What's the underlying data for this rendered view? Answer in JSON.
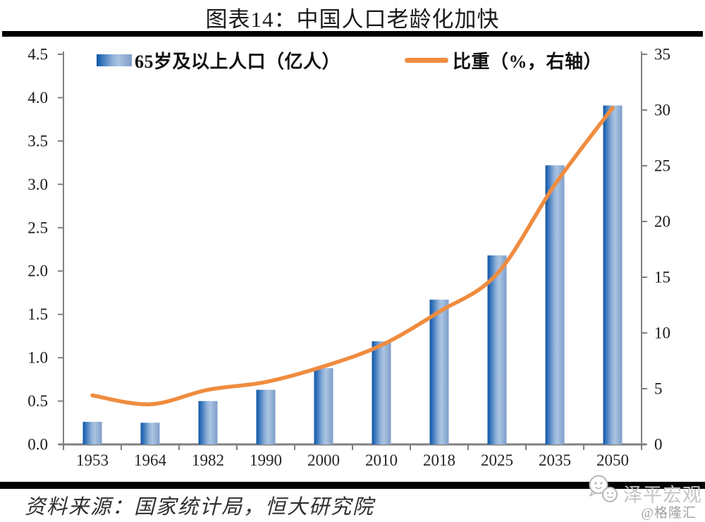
{
  "title": "图表14：中国人口老龄化加快",
  "footer": {
    "source": "资料来源：国家统计局，恒大研究院",
    "watermark": "泽平宏观",
    "credit": "@格隆汇"
  },
  "icons": {
    "watermark_logo": "chat-bubbles-face-icon"
  },
  "colors": {
    "bar_dark": "#17549e",
    "bar_mid": "#2166b4",
    "bar_light": "#aac4e1",
    "bar_right": "#7e9dc9",
    "line": "#EF8C3F",
    "axis": "#808080",
    "rule": "#000000",
    "watermark_gray": "#c4c4c4"
  },
  "chart_data": {
    "type": "bar+line combo",
    "categories": [
      "1953",
      "1964",
      "1982",
      "1990",
      "2000",
      "2010",
      "2018",
      "2025",
      "2035",
      "2050"
    ],
    "series": [
      {
        "name": "65岁及以上人口（亿人）",
        "type": "bar",
        "axis": "left",
        "values": [
          0.26,
          0.25,
          0.5,
          0.63,
          0.88,
          1.19,
          1.67,
          2.18,
          3.22,
          3.91
        ]
      },
      {
        "name": "比重（%，右轴）",
        "type": "line",
        "axis": "right",
        "values": [
          4.4,
          3.6,
          4.9,
          5.6,
          7.0,
          8.9,
          11.9,
          15.3,
          23.3,
          30.2
        ]
      }
    ],
    "left_axis": {
      "min": 0,
      "max": 4.5,
      "step": 0.5,
      "ticks": [
        "0.0",
        "0.5",
        "1.0",
        "1.5",
        "2.0",
        "2.5",
        "3.0",
        "3.5",
        "4.0",
        "4.5"
      ]
    },
    "right_axis": {
      "min": 0,
      "max": 35,
      "step": 5,
      "ticks": [
        "0",
        "5",
        "10",
        "15",
        "20",
        "25",
        "30",
        "35"
      ]
    },
    "grid": false,
    "legend_position": "top-inside",
    "line_smoothed": true
  }
}
